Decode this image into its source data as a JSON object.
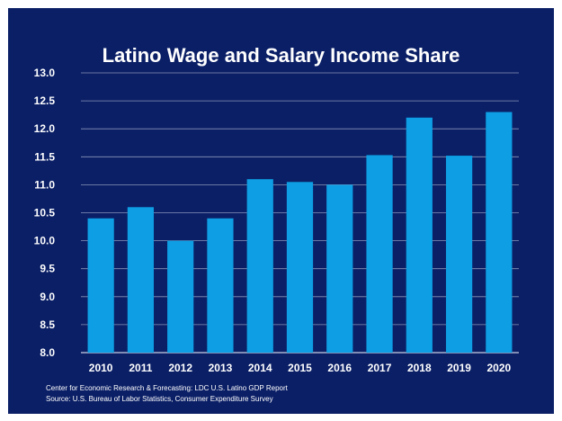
{
  "title": "Latino Wage and Salary Income Share",
  "footnote_1": "Center for Economic Research & Forecasting: LDC U.S. Latino GDP Report",
  "footnote_2": "Source: U.S. Bureau of Labor Statistics, Consumer Expenditure Survey",
  "colors": {
    "background": "#0b1f66",
    "bar": "#0d9ee3",
    "text": "#ffffff",
    "grid": "#8a95b8"
  },
  "chart_data": {
    "type": "bar",
    "title": "Latino Wage and Salary Income Share",
    "xlabel": "",
    "ylabel": "",
    "categories": [
      "2010",
      "2011",
      "2012",
      "2013",
      "2014",
      "2015",
      "2016",
      "2017",
      "2018",
      "2019",
      "2020"
    ],
    "values": [
      10.4,
      10.6,
      10.0,
      10.4,
      11.1,
      11.05,
      11.0,
      11.53,
      12.2,
      11.52,
      12.3
    ],
    "ylim": [
      8.0,
      13.0
    ],
    "yticks": [
      "8.0",
      "8.5",
      "9.0",
      "9.5",
      "10.0",
      "10.5",
      "11.0",
      "11.5",
      "12.0",
      "12.5",
      "13.0"
    ],
    "grid": true,
    "legend": "none"
  }
}
